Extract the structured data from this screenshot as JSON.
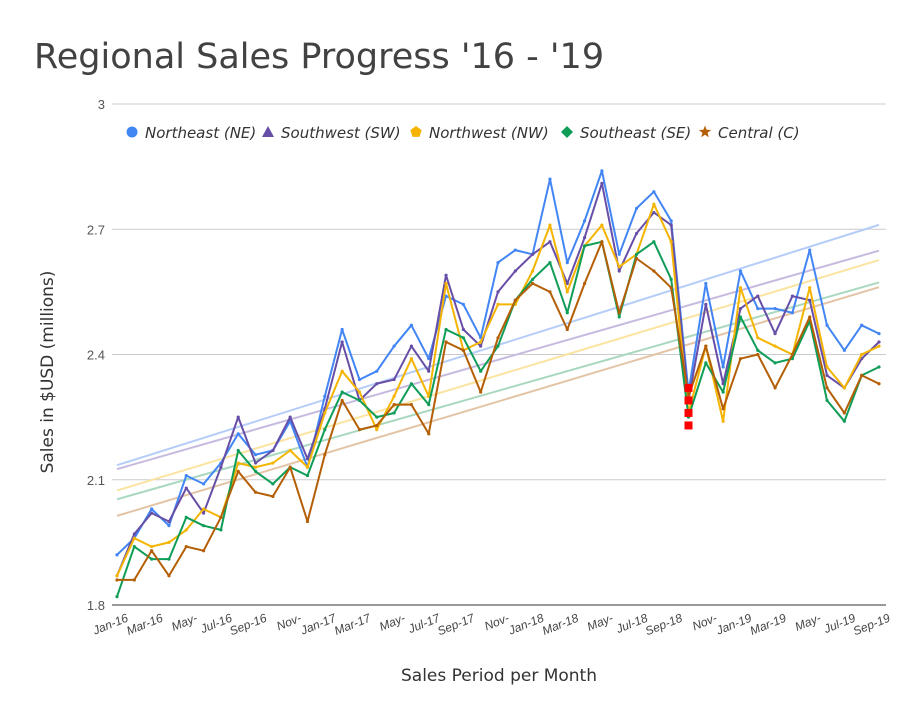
{
  "chart_data": {
    "type": "line",
    "title": "Regional Sales Progress '16 - '19",
    "xlabel": "Sales Period per Month",
    "ylabel": "Sales in $USD (millions)",
    "ylim": [
      1.8,
      3.0
    ],
    "y_ticks": [
      "1.8",
      "2.1",
      "2.4",
      "2.7",
      "3"
    ],
    "y_tick_values": [
      1.8,
      2.1,
      2.4,
      2.7,
      3.0
    ],
    "grid": true,
    "legend_position": "top",
    "x_tick_labels": [
      "Jan-16",
      "Mar-16",
      "May-",
      "Jul-16",
      "Sep-16",
      "Nov-",
      "Jan-17",
      "Mar-17",
      "May-",
      "Jul-17",
      "Sep-17",
      "Nov-",
      "Jan-18",
      "Mar-18",
      "May-",
      "Jul-18",
      "Sep-18",
      "Nov-",
      "Jan-19",
      "Mar-19",
      "May-",
      "Jul-19",
      "Sep-19"
    ],
    "x_tick_indices": [
      0,
      2,
      4,
      6,
      8,
      10,
      12,
      14,
      16,
      18,
      20,
      22,
      24,
      26,
      28,
      30,
      32,
      34,
      36,
      38,
      40,
      42,
      44
    ],
    "n_points": 45,
    "series": [
      {
        "name": "Northeast (NE)",
        "marker": "circle",
        "color": "#4285f4",
        "trend_color": "#b5cdf8",
        "values": [
          1.92,
          1.96,
          2.03,
          1.99,
          2.11,
          2.09,
          2.14,
          2.21,
          2.16,
          2.17,
          2.24,
          2.13,
          2.3,
          2.46,
          2.34,
          2.36,
          2.42,
          2.47,
          2.39,
          2.54,
          2.52,
          2.44,
          2.62,
          2.65,
          2.64,
          2.82,
          2.62,
          2.72,
          2.84,
          2.64,
          2.75,
          2.79,
          2.72,
          2.31,
          2.57,
          2.37,
          2.6,
          2.51,
          2.51,
          2.5,
          2.65,
          2.47,
          2.41,
          2.47,
          2.45
        ]
      },
      {
        "name": "Southwest (SW)",
        "marker": "triangle",
        "color": "#674ea7",
        "trend_color": "#c6bbdf",
        "values": [
          1.87,
          1.97,
          2.02,
          2.0,
          2.08,
          2.02,
          2.13,
          2.25,
          2.14,
          2.17,
          2.25,
          2.15,
          2.27,
          2.43,
          2.29,
          2.33,
          2.34,
          2.42,
          2.36,
          2.59,
          2.46,
          2.42,
          2.55,
          2.6,
          2.64,
          2.67,
          2.57,
          2.68,
          2.81,
          2.6,
          2.69,
          2.74,
          2.71,
          2.29,
          2.52,
          2.33,
          2.51,
          2.54,
          2.45,
          2.54,
          2.53,
          2.35,
          2.32,
          2.39,
          2.43
        ]
      },
      {
        "name": "Northwest (NW)",
        "marker": "pentagon",
        "color": "#f4b400",
        "trend_color": "#fbe3a0",
        "values": [
          1.87,
          1.96,
          1.94,
          1.95,
          1.98,
          2.03,
          2.01,
          2.14,
          2.13,
          2.14,
          2.17,
          2.13,
          2.26,
          2.36,
          2.31,
          2.22,
          2.3,
          2.39,
          2.3,
          2.57,
          2.41,
          2.43,
          2.52,
          2.52,
          2.6,
          2.71,
          2.55,
          2.66,
          2.71,
          2.61,
          2.64,
          2.76,
          2.67,
          2.26,
          2.42,
          2.24,
          2.56,
          2.44,
          2.42,
          2.4,
          2.56,
          2.37,
          2.32,
          2.4,
          2.42
        ]
      },
      {
        "name": "Southeast (SE)",
        "marker": "diamond",
        "color": "#0f9d58",
        "trend_color": "#a9d8bf",
        "values": [
          1.82,
          1.94,
          1.91,
          1.91,
          2.01,
          1.99,
          1.98,
          2.17,
          2.12,
          2.09,
          2.13,
          2.11,
          2.22,
          2.31,
          2.29,
          2.25,
          2.26,
          2.33,
          2.28,
          2.46,
          2.44,
          2.36,
          2.42,
          2.53,
          2.58,
          2.62,
          2.5,
          2.66,
          2.67,
          2.49,
          2.64,
          2.67,
          2.58,
          2.25,
          2.38,
          2.31,
          2.49,
          2.41,
          2.38,
          2.39,
          2.48,
          2.29,
          2.24,
          2.35,
          2.37
        ]
      },
      {
        "name": "Central (C)",
        "marker": "star",
        "color": "#b45f06",
        "trend_color": "#e3c4a6",
        "values": [
          1.86,
          1.86,
          1.93,
          1.87,
          1.94,
          1.93,
          2.01,
          2.12,
          2.07,
          2.06,
          2.13,
          2.0,
          2.16,
          2.29,
          2.22,
          2.23,
          2.28,
          2.28,
          2.21,
          2.43,
          2.41,
          2.31,
          2.44,
          2.53,
          2.57,
          2.55,
          2.46,
          2.57,
          2.67,
          2.5,
          2.63,
          2.6,
          2.56,
          2.3,
          2.42,
          2.27,
          2.39,
          2.4,
          2.32,
          2.4,
          2.49,
          2.32,
          2.26,
          2.35,
          2.33
        ]
      }
    ],
    "annotation": {
      "type": "marker-column",
      "color": "#ff0000",
      "x_index": 33,
      "values": [
        2.32,
        2.29,
        2.26,
        2.23
      ]
    }
  }
}
